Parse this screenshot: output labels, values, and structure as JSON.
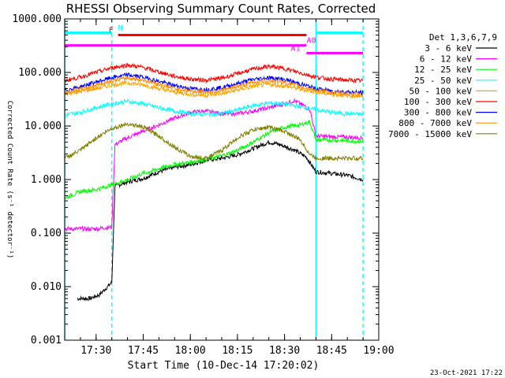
{
  "chart_data": {
    "type": "line",
    "title": "RHESSI Observing Summary Count Rates, Corrected",
    "xlabel": "Start Time (10-Dec-14 17:20:02)",
    "ylabel": "Corrected Count Rate (s⁻¹ detector⁻¹)",
    "y_scale": "log",
    "ylim": [
      0.001,
      1000
    ],
    "y_ticks": [
      "0.001",
      "0.010",
      "0.100",
      "1.000",
      "10.000",
      "100.000",
      "1000.000"
    ],
    "xlim": [
      "17:20",
      "19:00"
    ],
    "x_ticks": [
      "17:30",
      "17:45",
      "18:00",
      "18:15",
      "18:30",
      "18:45",
      "19:00"
    ],
    "footer": "23-Oct-2021 17:22",
    "legend_title": "Det 1,3,6,7,9",
    "legend_position": "right",
    "series": [
      {
        "name": "3 - 6 keV",
        "color": "#000000",
        "points": [
          [
            "17:20",
            null
          ],
          [
            "17:24",
            0.006
          ],
          [
            "17:28",
            0.006
          ],
          [
            "17:31",
            0.007
          ],
          [
            "17:35",
            0.012
          ],
          [
            "17:36",
            0.75
          ],
          [
            "17:40",
            0.9
          ],
          [
            "17:45",
            1.05
          ],
          [
            "17:50",
            1.4
          ],
          [
            "17:55",
            1.7
          ],
          [
            "18:00",
            1.9
          ],
          [
            "18:05",
            2.3
          ],
          [
            "18:10",
            2.5
          ],
          [
            "18:15",
            2.9
          ],
          [
            "18:20",
            3.8
          ],
          [
            "18:25",
            5.0
          ],
          [
            "18:28",
            4.6
          ],
          [
            "18:33",
            3.6
          ],
          [
            "18:37",
            2.6
          ],
          [
            "18:40",
            1.4
          ],
          [
            "18:45",
            1.3
          ],
          [
            "18:50",
            1.2
          ],
          [
            "18:55",
            1.0
          ]
        ]
      },
      {
        "name": "6 - 12 keV",
        "color": "#ff00ff",
        "points": [
          [
            "17:20",
            0.12
          ],
          [
            "17:30",
            0.12
          ],
          [
            "17:35",
            0.13
          ],
          [
            "17:36",
            4.5
          ],
          [
            "17:40",
            6
          ],
          [
            "17:45",
            8
          ],
          [
            "17:50",
            10.5
          ],
          [
            "17:55",
            14
          ],
          [
            "18:00",
            18
          ],
          [
            "18:05",
            19
          ],
          [
            "18:10",
            17
          ],
          [
            "18:15",
            17
          ],
          [
            "18:20",
            19
          ],
          [
            "18:25",
            22
          ],
          [
            "18:30",
            26
          ],
          [
            "18:33",
            30
          ],
          [
            "18:38",
            21
          ],
          [
            "18:40",
            6.5
          ],
          [
            "18:45",
            6.3
          ],
          [
            "18:50",
            6.2
          ],
          [
            "18:55",
            6.0
          ]
        ]
      },
      {
        "name": "12 - 25 keV",
        "color": "#00ff00",
        "points": [
          [
            "17:20",
            0.45
          ],
          [
            "17:25",
            0.6
          ],
          [
            "17:30",
            0.65
          ],
          [
            "17:35",
            0.8
          ],
          [
            "17:40",
            1.0
          ],
          [
            "17:45",
            1.3
          ],
          [
            "17:50",
            1.6
          ],
          [
            "17:55",
            1.9
          ],
          [
            "18:00",
            2.1
          ],
          [
            "18:05",
            2.4
          ],
          [
            "18:10",
            2.8
          ],
          [
            "18:15",
            3.5
          ],
          [
            "18:20",
            5.0
          ],
          [
            "18:25",
            7.5
          ],
          [
            "18:30",
            9.5
          ],
          [
            "18:35",
            10.5
          ],
          [
            "18:38",
            12
          ],
          [
            "18:40",
            5.5
          ],
          [
            "18:45",
            5.5
          ],
          [
            "18:50",
            5.3
          ],
          [
            "18:55",
            5.2
          ]
        ]
      },
      {
        "name": "25 - 50 keV",
        "color": "#00ffff",
        "points": [
          [
            "17:20",
            16
          ],
          [
            "17:25",
            18
          ],
          [
            "17:30",
            22
          ],
          [
            "17:35",
            26
          ],
          [
            "17:40",
            29
          ],
          [
            "17:45",
            26
          ],
          [
            "17:50",
            22
          ],
          [
            "17:55",
            19
          ],
          [
            "18:00",
            17
          ],
          [
            "18:05",
            16.5
          ],
          [
            "18:10",
            17
          ],
          [
            "18:15",
            20
          ],
          [
            "18:20",
            24
          ],
          [
            "18:25",
            27
          ],
          [
            "18:30",
            26
          ],
          [
            "18:35",
            23
          ],
          [
            "18:40",
            20
          ],
          [
            "18:45",
            18
          ],
          [
            "18:50",
            17
          ],
          [
            "18:55",
            16.5
          ]
        ]
      },
      {
        "name": "50 - 100 keV",
        "color": "#ffa500",
        "points": [
          [
            "17:20",
            40
          ],
          [
            "17:25",
            44
          ],
          [
            "17:30",
            50
          ],
          [
            "17:35",
            58
          ],
          [
            "17:40",
            64
          ],
          [
            "17:45",
            59
          ],
          [
            "17:50",
            50
          ],
          [
            "17:55",
            43
          ],
          [
            "18:00",
            39
          ],
          [
            "18:05",
            37.5
          ],
          [
            "18:10",
            40
          ],
          [
            "18:15",
            47
          ],
          [
            "18:20",
            55
          ],
          [
            "18:25",
            60
          ],
          [
            "18:30",
            56
          ],
          [
            "18:35",
            49
          ],
          [
            "18:40",
            43
          ],
          [
            "18:45",
            39
          ],
          [
            "18:50",
            37
          ],
          [
            "18:55",
            36
          ]
        ]
      },
      {
        "name": "100 - 300 keV",
        "color": "#ff0000",
        "points": [
          [
            "17:20",
            70
          ],
          [
            "17:25",
            82
          ],
          [
            "17:30",
            100
          ],
          [
            "17:35",
            122
          ],
          [
            "17:40",
            138
          ],
          [
            "17:45",
            124
          ],
          [
            "17:50",
            102
          ],
          [
            "17:55",
            85
          ],
          [
            "18:00",
            75
          ],
          [
            "18:05",
            72
          ],
          [
            "18:10",
            78
          ],
          [
            "18:15",
            95
          ],
          [
            "18:20",
            115
          ],
          [
            "18:25",
            130
          ],
          [
            "18:30",
            118
          ],
          [
            "18:35",
            98
          ],
          [
            "18:40",
            82
          ],
          [
            "18:45",
            75
          ],
          [
            "18:50",
            72
          ],
          [
            "18:55",
            70
          ]
        ]
      },
      {
        "name": "300 - 800 keV",
        "color": "#0000ff",
        "points": [
          [
            "17:20",
            46
          ],
          [
            "17:25",
            54
          ],
          [
            "17:30",
            66
          ],
          [
            "17:35",
            80
          ],
          [
            "17:40",
            90
          ],
          [
            "17:45",
            82
          ],
          [
            "17:50",
            68
          ],
          [
            "17:55",
            57
          ],
          [
            "18:00",
            50
          ],
          [
            "18:05",
            48
          ],
          [
            "18:10",
            52
          ],
          [
            "18:15",
            62
          ],
          [
            "18:20",
            74
          ],
          [
            "18:25",
            80
          ],
          [
            "18:30",
            74
          ],
          [
            "18:35",
            61
          ],
          [
            "18:40",
            50
          ],
          [
            "18:45",
            45
          ],
          [
            "18:50",
            43
          ],
          [
            "18:55",
            42
          ]
        ]
      },
      {
        "name": "800 - 7000 keV",
        "color": "#ff8c00",
        "points": [
          [
            "17:20",
            42
          ],
          [
            "17:25",
            48
          ],
          [
            "17:30",
            58
          ],
          [
            "17:35",
            70
          ],
          [
            "17:40",
            79
          ],
          [
            "17:45",
            72
          ],
          [
            "17:50",
            60
          ],
          [
            "17:55",
            50
          ],
          [
            "18:00",
            45
          ],
          [
            "18:05",
            43
          ],
          [
            "18:10",
            46
          ],
          [
            "18:15",
            55
          ],
          [
            "18:20",
            65
          ],
          [
            "18:25",
            71
          ],
          [
            "18:30",
            65
          ],
          [
            "18:35",
            55
          ],
          [
            "18:40",
            46
          ],
          [
            "18:45",
            42
          ],
          [
            "18:50",
            40
          ],
          [
            "18:55",
            39
          ]
        ]
      },
      {
        "name": "7000 - 15000 keV",
        "color": "#808000",
        "points": [
          [
            "17:20",
            2.5
          ],
          [
            "17:25",
            3.5
          ],
          [
            "17:30",
            6
          ],
          [
            "17:35",
            9
          ],
          [
            "17:40",
            11
          ],
          [
            "17:45",
            9.5
          ],
          [
            "17:50",
            6.5
          ],
          [
            "17:55",
            4
          ],
          [
            "18:00",
            2.7
          ],
          [
            "18:05",
            2.5
          ],
          [
            "18:10",
            3.5
          ],
          [
            "18:15",
            6
          ],
          [
            "18:20",
            8.5
          ],
          [
            "18:25",
            9.5
          ],
          [
            "18:30",
            8
          ],
          [
            "18:35",
            5.5
          ],
          [
            "18:38",
            3
          ],
          [
            "18:40",
            2.5
          ],
          [
            "18:45",
            2.5
          ],
          [
            "18:50",
            2.5
          ],
          [
            "18:55",
            2.5
          ]
        ]
      }
    ],
    "flags": [
      {
        "label": "N",
        "color": "#00ffff",
        "level": 550,
        "segments": [
          [
            "17:20",
            "17:35"
          ],
          [
            "18:40",
            "18:55"
          ]
        ],
        "label_at": "17:37"
      },
      {
        "label": "F",
        "color": "#ff0000",
        "level": 500,
        "segments": [
          [
            "17:37",
            "18:37"
          ]
        ],
        "label_at": "17:34"
      },
      {
        "label": "A0",
        "color": "#ff00ff",
        "level": 320,
        "segments": [
          [
            "17:20",
            "18:37"
          ]
        ],
        "label_at": "18:37"
      },
      {
        "label": "A1",
        "color": "#ff00ff",
        "level": 230,
        "segments": [
          [
            "18:37",
            "18:55"
          ]
        ],
        "label_at": "18:32"
      }
    ],
    "event_lines": [
      {
        "time": "17:20",
        "style": "solid",
        "color": "#00ffff"
      },
      {
        "time": "17:35",
        "style": "dashed",
        "color": "#00ffff"
      },
      {
        "time": "18:40",
        "style": "solid",
        "color": "#00ffff"
      },
      {
        "time": "18:55",
        "style": "dashed",
        "color": "#00ffff"
      }
    ]
  }
}
